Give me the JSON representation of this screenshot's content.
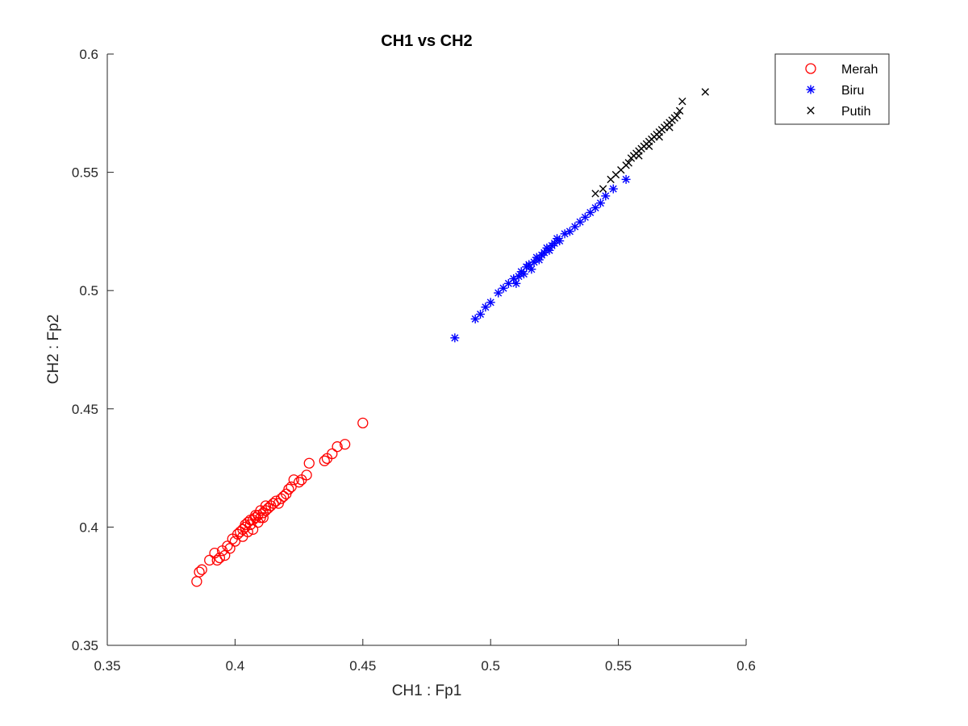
{
  "chart_data": {
    "type": "scatter",
    "title": "CH1 vs CH2",
    "xlabel": "CH1 : Fp1",
    "ylabel": "CH2 : Fp2",
    "xlim": [
      0.35,
      0.6
    ],
    "ylim": [
      0.35,
      0.6
    ],
    "xticks": [
      0.35,
      0.4,
      0.45,
      0.5,
      0.55,
      0.6
    ],
    "yticks": [
      0.35,
      0.4,
      0.45,
      0.5,
      0.55,
      0.6
    ],
    "xtick_labels": [
      "0.35",
      "0.4",
      "0.45",
      "0.5",
      "0.55",
      "0.6"
    ],
    "ytick_labels": [
      "0.35",
      "0.4",
      "0.45",
      "0.5",
      "0.55",
      "0.6"
    ],
    "grid": false,
    "legend_position": "outside-top-right",
    "series": [
      {
        "name": "Merah",
        "marker": "circle",
        "color": "#ff0000",
        "x": [
          0.385,
          0.386,
          0.387,
          0.39,
          0.392,
          0.393,
          0.394,
          0.395,
          0.396,
          0.397,
          0.398,
          0.399,
          0.4,
          0.401,
          0.402,
          0.403,
          0.404,
          0.405,
          0.406,
          0.407,
          0.408,
          0.409,
          0.41,
          0.411,
          0.412,
          0.413,
          0.414,
          0.415,
          0.416,
          0.417,
          0.418,
          0.419,
          0.42,
          0.421,
          0.422,
          0.423,
          0.425,
          0.426,
          0.428,
          0.429,
          0.435,
          0.436,
          0.438,
          0.44,
          0.443,
          0.45,
          0.404,
          0.406,
          0.408,
          0.41,
          0.412,
          0.407,
          0.409,
          0.411,
          0.403,
          0.405
        ],
        "y": [
          0.377,
          0.381,
          0.382,
          0.386,
          0.389,
          0.386,
          0.387,
          0.39,
          0.388,
          0.392,
          0.391,
          0.395,
          0.394,
          0.397,
          0.398,
          0.399,
          0.4,
          0.402,
          0.401,
          0.403,
          0.404,
          0.405,
          0.404,
          0.406,
          0.407,
          0.408,
          0.409,
          0.41,
          0.411,
          0.41,
          0.412,
          0.413,
          0.414,
          0.416,
          0.417,
          0.42,
          0.419,
          0.42,
          0.422,
          0.427,
          0.428,
          0.429,
          0.431,
          0.434,
          0.435,
          0.444,
          0.401,
          0.403,
          0.405,
          0.407,
          0.409,
          0.399,
          0.402,
          0.404,
          0.396,
          0.398
        ]
      },
      {
        "name": "Biru",
        "marker": "asterisk",
        "color": "#0000ff",
        "x": [
          0.486,
          0.494,
          0.496,
          0.498,
          0.5,
          0.503,
          0.505,
          0.507,
          0.509,
          0.511,
          0.512,
          0.514,
          0.515,
          0.517,
          0.518,
          0.52,
          0.521,
          0.522,
          0.523,
          0.525,
          0.527,
          0.529,
          0.531,
          0.533,
          0.535,
          0.537,
          0.539,
          0.541,
          0.543,
          0.545,
          0.548,
          0.553,
          0.516,
          0.519,
          0.513,
          0.524,
          0.51,
          0.526
        ],
        "y": [
          0.48,
          0.488,
          0.49,
          0.493,
          0.495,
          0.499,
          0.501,
          0.503,
          0.505,
          0.506,
          0.508,
          0.51,
          0.511,
          0.512,
          0.514,
          0.515,
          0.516,
          0.518,
          0.517,
          0.52,
          0.521,
          0.524,
          0.525,
          0.527,
          0.529,
          0.531,
          0.533,
          0.535,
          0.537,
          0.54,
          0.543,
          0.547,
          0.509,
          0.513,
          0.507,
          0.519,
          0.503,
          0.522
        ]
      },
      {
        "name": "Putih",
        "marker": "cross",
        "color": "#000000",
        "x": [
          0.541,
          0.544,
          0.547,
          0.549,
          0.551,
          0.553,
          0.554,
          0.555,
          0.556,
          0.557,
          0.558,
          0.559,
          0.56,
          0.561,
          0.562,
          0.563,
          0.564,
          0.565,
          0.566,
          0.567,
          0.568,
          0.569,
          0.57,
          0.571,
          0.572,
          0.573,
          0.574,
          0.575,
          0.584,
          0.558,
          0.562,
          0.566,
          0.57
        ],
        "y": [
          0.541,
          0.543,
          0.547,
          0.549,
          0.551,
          0.553,
          0.554,
          0.556,
          0.557,
          0.558,
          0.559,
          0.56,
          0.561,
          0.562,
          0.563,
          0.564,
          0.565,
          0.566,
          0.567,
          0.568,
          0.569,
          0.57,
          0.571,
          0.572,
          0.573,
          0.574,
          0.576,
          0.58,
          0.584,
          0.557,
          0.561,
          0.565,
          0.569
        ]
      }
    ]
  }
}
